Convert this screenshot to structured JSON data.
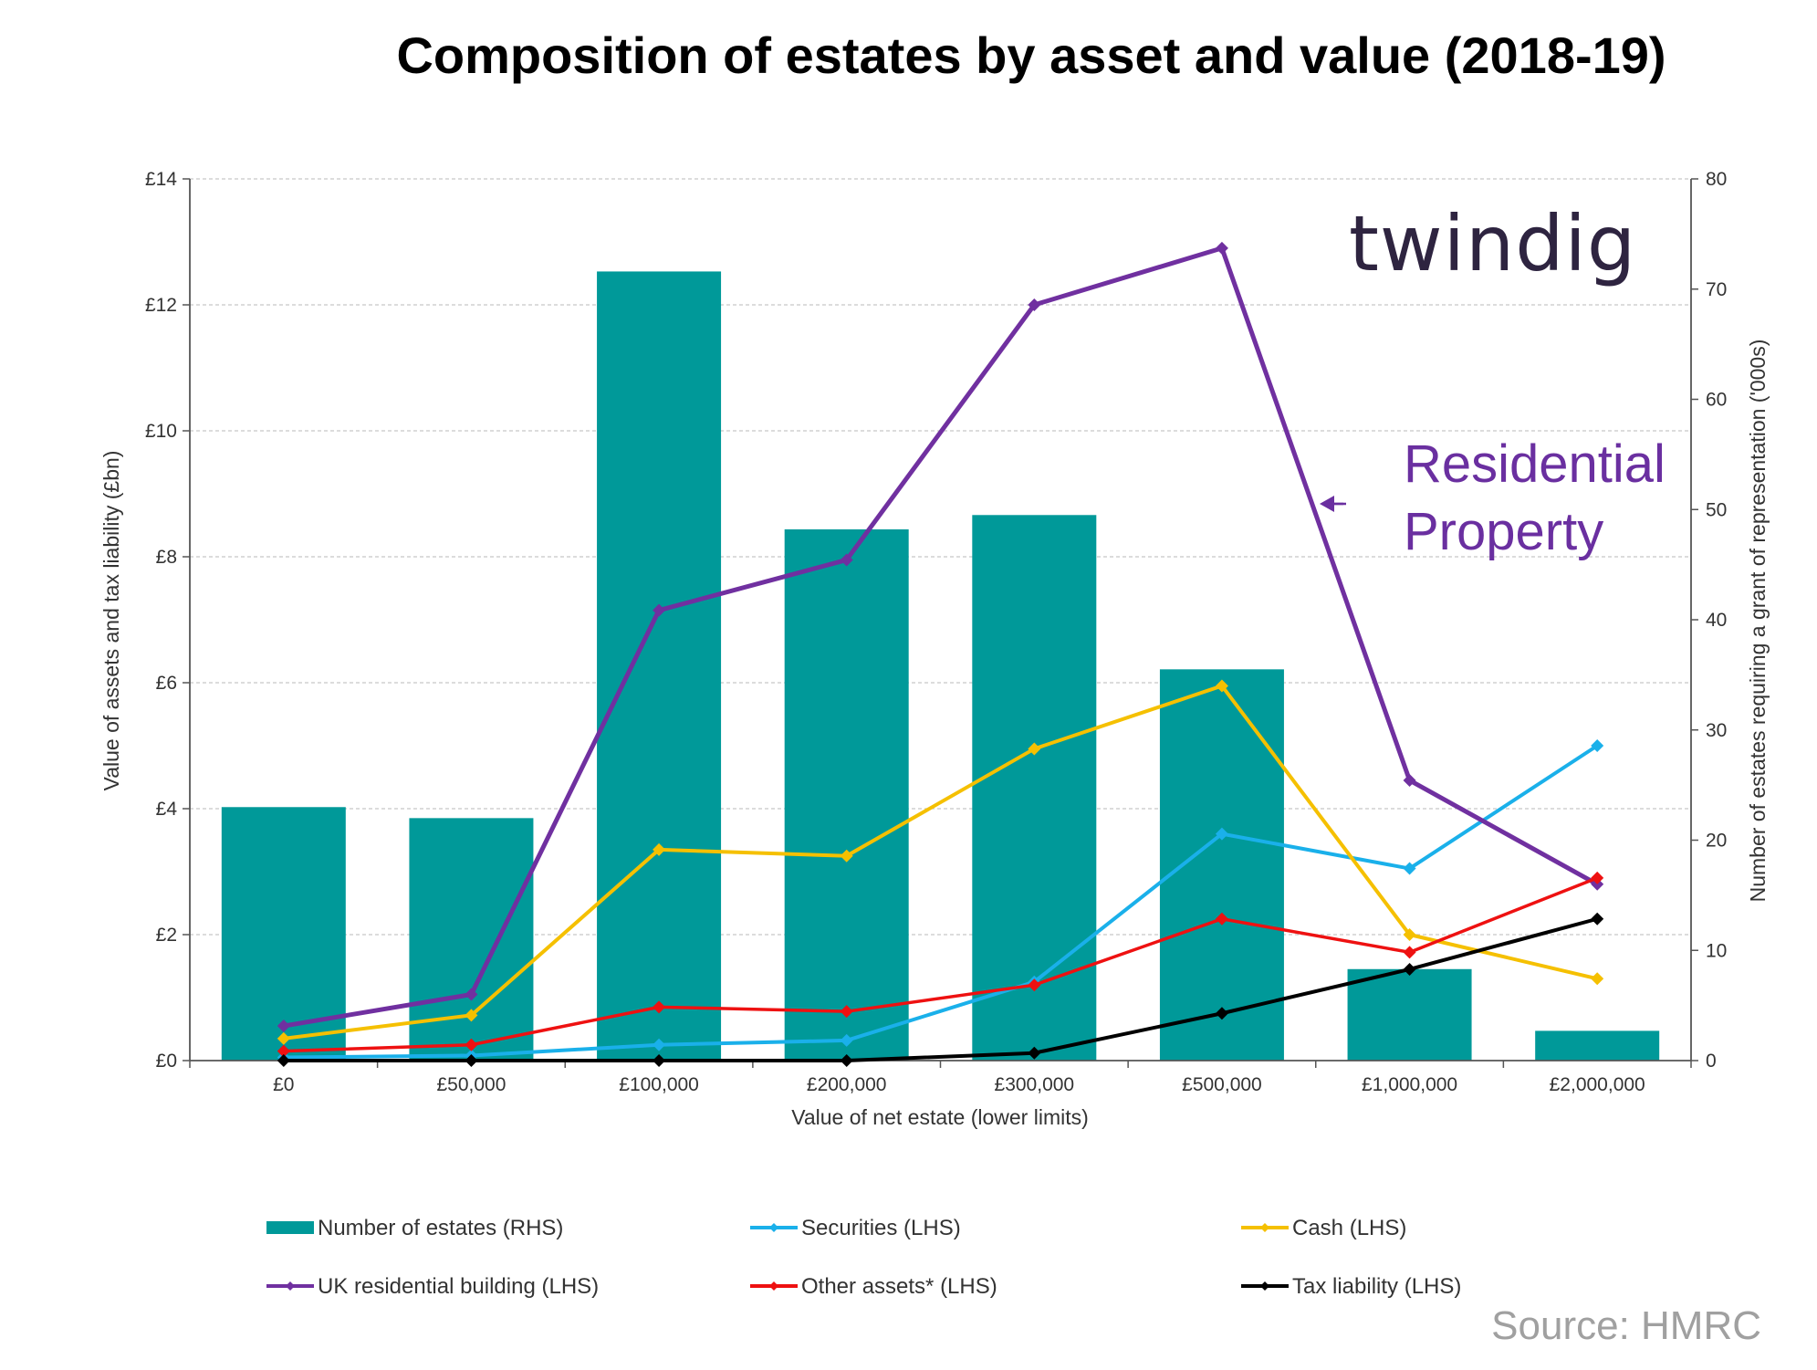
{
  "title": "Composition of estates by asset and value (2018-19)",
  "logo_text": "twindig",
  "annotation": {
    "line1": "Residential",
    "line2": "Property"
  },
  "source": "Source: HMRC",
  "colors": {
    "bars": "#009999",
    "securities": "#1ab0ea",
    "cash": "#f5c000",
    "residential": "#7030a0",
    "other": "#ee1111",
    "tax": "#000000",
    "grid": "#c8c8c8",
    "axis": "#555555"
  },
  "chart_data": {
    "type": "bar",
    "xlabel": "Value of net estate (lower limits)",
    "ylabel": "Value of assets and tax liability (£bn)",
    "y2label": "Number of estates requiring a grant of representation ('000s)",
    "categories": [
      "£0",
      "£50,000",
      "£100,000",
      "£200,000",
      "£300,000",
      "£500,000",
      "£1,000,000",
      "£2,000,000"
    ],
    "ylim": [
      0,
      14
    ],
    "y_ticks": [
      "£0",
      "£2",
      "£4",
      "£6",
      "£8",
      "£10",
      "£12",
      "£14"
    ],
    "y2lim": [
      0,
      80
    ],
    "y2_ticks": [
      "0",
      "10",
      "20",
      "30",
      "40",
      "50",
      "60",
      "70",
      "80"
    ],
    "grid": true,
    "legend_position": "bottom",
    "bar_series": {
      "name": "Number of estates (RHS)",
      "axis": "right",
      "values": [
        23,
        22,
        71.6,
        48.2,
        49.5,
        35.5,
        8.3,
        2.7
      ]
    },
    "line_series": [
      {
        "key": "securities",
        "name": "Securities (LHS)",
        "values": [
          0.05,
          0.08,
          0.25,
          0.32,
          1.25,
          3.6,
          3.05,
          5.0
        ]
      },
      {
        "key": "cash",
        "name": "Cash (LHS)",
        "values": [
          0.35,
          0.72,
          3.35,
          3.25,
          4.95,
          5.95,
          2.0,
          1.3
        ]
      },
      {
        "key": "residential",
        "name": "UK residential building (LHS)",
        "values": [
          0.55,
          1.05,
          7.15,
          7.95,
          12.0,
          12.9,
          4.45,
          2.8
        ]
      },
      {
        "key": "other",
        "name": "Other assets* (LHS)",
        "values": [
          0.15,
          0.25,
          0.85,
          0.78,
          1.2,
          2.25,
          1.72,
          2.9
        ]
      },
      {
        "key": "tax",
        "name": "Tax liability (LHS)",
        "values": [
          0.0,
          0.0,
          0.0,
          0.0,
          0.12,
          0.75,
          1.45,
          2.25
        ]
      }
    ]
  }
}
